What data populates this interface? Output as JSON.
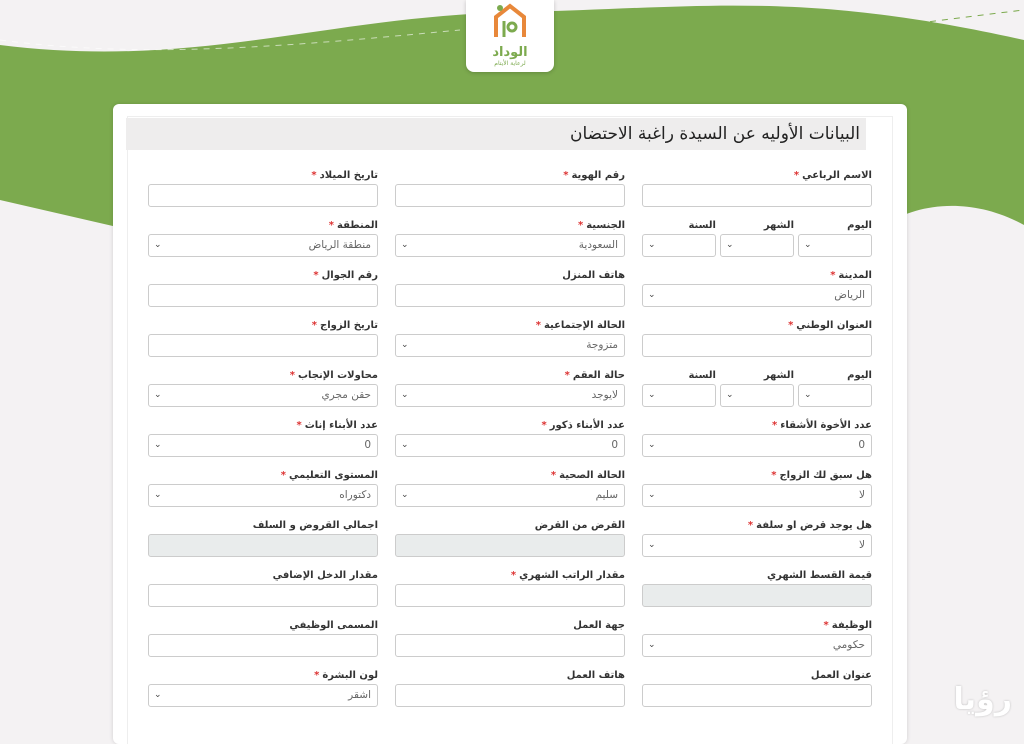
{
  "logo": {
    "name": "الوداد",
    "tagline": "لرعاية الأيتام"
  },
  "colors": {
    "brand_green": "#7caa4e",
    "required": "#dd3333"
  },
  "form": {
    "title": "البيانات الأوليه عن السيدة راغبة الاحتضان",
    "date_parts": [
      "اليوم",
      "الشهر",
      "السنة"
    ],
    "rows": [
      [
        {
          "label": "الاسم الرباعي",
          "req": true,
          "type": "text",
          "value": ""
        },
        {
          "label": "رقم الهوية",
          "req": true,
          "type": "text",
          "value": ""
        },
        {
          "label": "تاريخ الميلاد",
          "req": true,
          "type": "text",
          "value": ""
        }
      ],
      [
        {
          "label": "",
          "req": false,
          "type": "date3",
          "value": ""
        },
        {
          "label": "الجنسية",
          "req": true,
          "type": "select",
          "value": "السعودية"
        },
        {
          "label": "المنطقة",
          "req": true,
          "type": "select",
          "value": "منطقة الرياض"
        }
      ],
      [
        {
          "label": "المدينة",
          "req": true,
          "type": "select",
          "value": "الرياض"
        },
        {
          "label": "هاتف المنزل",
          "req": false,
          "type": "text",
          "value": ""
        },
        {
          "label": "رقم الجوال",
          "req": true,
          "type": "text",
          "value": ""
        }
      ],
      [
        {
          "label": "العنوان الوطني",
          "req": true,
          "type": "text",
          "value": ""
        },
        {
          "label": "الحالة الإجتماعية",
          "req": true,
          "type": "select",
          "value": "متزوجة"
        },
        {
          "label": "تاريخ الزواج",
          "req": true,
          "type": "text",
          "value": ""
        }
      ],
      [
        {
          "label": "",
          "req": false,
          "type": "date3",
          "value": ""
        },
        {
          "label": "حالة العقم",
          "req": true,
          "type": "select",
          "value": "لايوجد"
        },
        {
          "label": "محاولات الإنجاب",
          "req": true,
          "type": "select",
          "value": "حقن مجري"
        }
      ],
      [
        {
          "label": "عدد الأخوة الأشقاء",
          "req": true,
          "type": "select",
          "value": "0"
        },
        {
          "label": "عدد الأبناء ذكور",
          "req": true,
          "type": "select",
          "value": "0"
        },
        {
          "label": "عدد الأبناء إناث",
          "req": true,
          "type": "select",
          "value": "0"
        }
      ],
      [
        {
          "label": "هل سبق لك الزواج",
          "req": true,
          "type": "select",
          "value": "لا"
        },
        {
          "label": "الحالة الصحية",
          "req": true,
          "type": "select",
          "value": "سليم"
        },
        {
          "label": "المستوى التعليمي",
          "req": true,
          "type": "select",
          "value": "دكتوراه"
        }
      ],
      [
        {
          "label": "هل يوجد قرض او سلفة",
          "req": true,
          "type": "select",
          "value": "لا"
        },
        {
          "label": "القرض من القرض",
          "req": false,
          "type": "disabled",
          "value": ""
        },
        {
          "label": "اجمالي القروض و السلف",
          "req": false,
          "type": "disabled",
          "value": ""
        }
      ],
      [
        {
          "label": "قيمة القسط الشهري",
          "req": false,
          "type": "disabled",
          "value": ""
        },
        {
          "label": "مقدار الراتب الشهري",
          "req": true,
          "type": "text",
          "value": ""
        },
        {
          "label": "مقدار الدخل الإضافي",
          "req": false,
          "type": "text",
          "value": ""
        }
      ],
      [
        {
          "label": "الوظيفة",
          "req": true,
          "type": "select",
          "value": "حكومي"
        },
        {
          "label": "جهة العمل",
          "req": false,
          "type": "text",
          "value": ""
        },
        {
          "label": "المسمى الوظيفي",
          "req": false,
          "type": "text",
          "value": ""
        }
      ],
      [
        {
          "label": "عنوان العمل",
          "req": false,
          "type": "text",
          "value": ""
        },
        {
          "label": "هاتف العمل",
          "req": false,
          "type": "text",
          "value": ""
        },
        {
          "label": "لون البشرة",
          "req": true,
          "type": "select",
          "value": "اشقر"
        }
      ]
    ]
  }
}
